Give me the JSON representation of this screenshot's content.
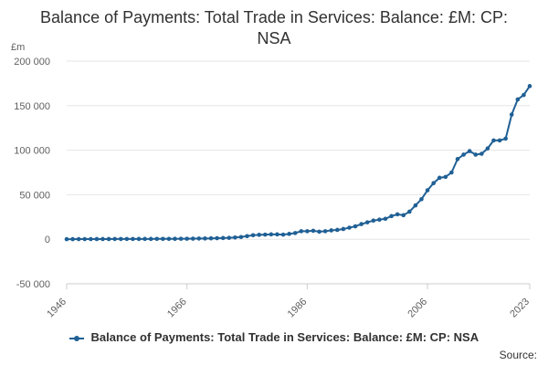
{
  "chart_data": {
    "type": "line",
    "title": "Balance of Payments: Total Trade in Services: Balance: £M: CP: NSA",
    "ylabel": "£m",
    "ylim": [
      -50000,
      200000
    ],
    "y_ticks": [
      200000,
      150000,
      100000,
      50000,
      0,
      -50000
    ],
    "y_tick_labels": [
      "200 000",
      "150 000",
      "100 000",
      "50 000",
      "0",
      "-50 000"
    ],
    "x_tick_labels": [
      "1946",
      "1966",
      "1986",
      "2006",
      "2023"
    ],
    "x_ticks": [
      1946,
      1966,
      1986,
      2006,
      2023
    ],
    "xlim": [
      1946,
      2023
    ],
    "legend_position": "bottom",
    "grid": true,
    "series": [
      {
        "name": "Balance of Payments: Total Trade in Services: Balance: £M: CP: NSA",
        "color": "#206095",
        "x": [
          1946,
          1947,
          1948,
          1949,
          1950,
          1951,
          1952,
          1953,
          1954,
          1955,
          1956,
          1957,
          1958,
          1959,
          1960,
          1961,
          1962,
          1963,
          1964,
          1965,
          1966,
          1967,
          1968,
          1969,
          1970,
          1971,
          1972,
          1973,
          1974,
          1975,
          1976,
          1977,
          1978,
          1979,
          1980,
          1981,
          1982,
          1983,
          1984,
          1985,
          1986,
          1987,
          1988,
          1989,
          1990,
          1991,
          1992,
          1993,
          1994,
          1995,
          1996,
          1997,
          1998,
          1999,
          2000,
          2001,
          2002,
          2003,
          2004,
          2005,
          2006,
          2007,
          2008,
          2009,
          2010,
          2011,
          2012,
          2013,
          2014,
          2015,
          2016,
          2017,
          2018,
          2019,
          2020,
          2021,
          2022,
          2023
        ],
        "values": [
          100,
          120,
          150,
          180,
          200,
          230,
          250,
          270,
          300,
          320,
          330,
          340,
          350,
          360,
          380,
          400,
          420,
          450,
          500,
          550,
          600,
          700,
          800,
          900,
          1000,
          1200,
          1400,
          1600,
          2000,
          2500,
          3500,
          4500,
          5000,
          5200,
          5500,
          5500,
          5200,
          6000,
          7000,
          9000,
          9000,
          9500,
          8500,
          9000,
          10000,
          10500,
          11500,
          13000,
          14500,
          17000,
          19000,
          21000,
          22000,
          23000,
          26000,
          28000,
          27000,
          31000,
          38000,
          45000,
          55000,
          63000,
          69000,
          70000,
          75000,
          90000,
          95000,
          99000,
          95000,
          96000,
          102000,
          111000,
          111000,
          113000,
          140000,
          157000,
          162000,
          172000
        ]
      }
    ]
  },
  "legend": {
    "label": "Balance of Payments: Total Trade in Services: Balance: £M: CP: NSA"
  },
  "source": {
    "label": "Source:"
  }
}
